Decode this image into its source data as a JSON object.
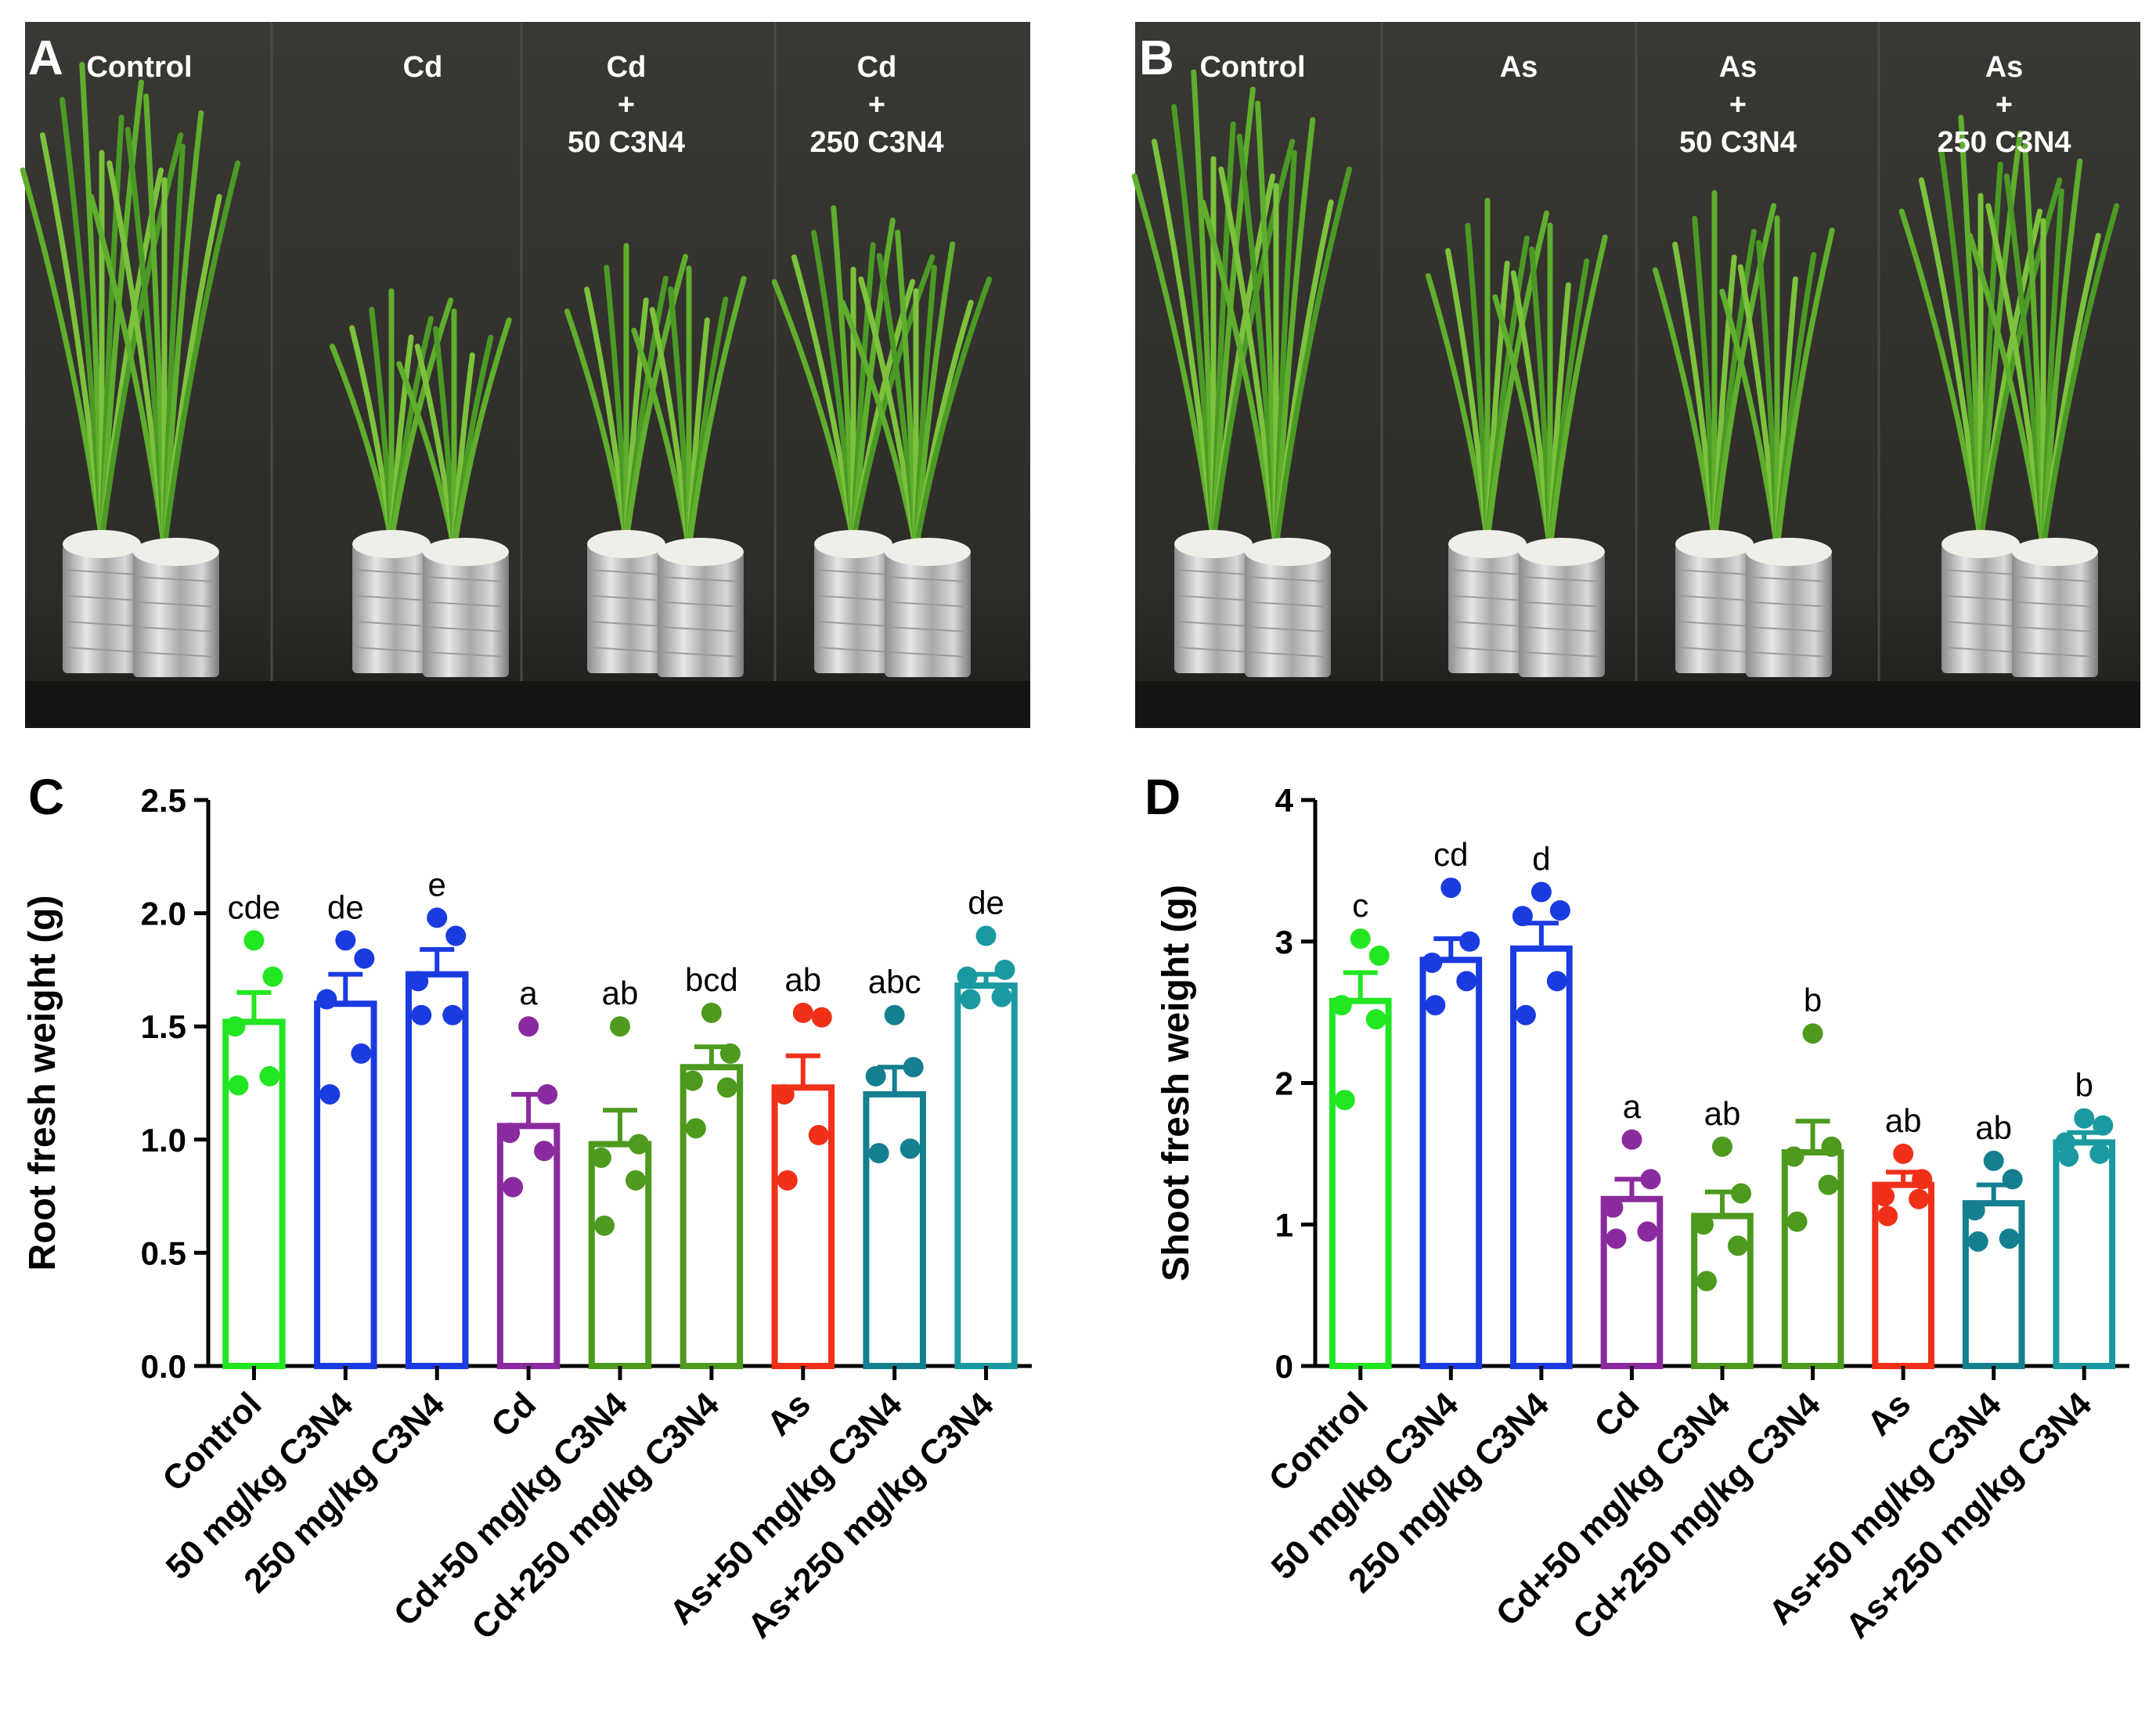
{
  "photos": {
    "A": {
      "letter": "A",
      "labels": [
        [
          "Control"
        ],
        [
          "Cd"
        ],
        [
          "Cd",
          "+",
          "50 C3N4"
        ],
        [
          "Cd",
          "+",
          "250 C3N4"
        ]
      ]
    },
    "B": {
      "letter": "B",
      "labels": [
        [
          "Control"
        ],
        [
          "As"
        ],
        [
          "As",
          "+",
          "50 C3N4"
        ],
        [
          "As",
          "+",
          "250 C3N4"
        ]
      ]
    }
  },
  "colors": [
    "#22e622",
    "#1a3be0",
    "#1a3be0",
    "#8b2a9e",
    "#4d9a1e",
    "#4d9a1e",
    "#f03018",
    "#147f8e",
    "#1a9aa0"
  ],
  "chart_data": [
    {
      "panel": "C",
      "type": "bar",
      "ylabel": "Root fresh weight (g)",
      "ylim": [
        0,
        2.5
      ],
      "yticks": [
        "0.0",
        "0.5",
        "1.0",
        "1.5",
        "2.0",
        "2.5"
      ],
      "categories": [
        "Control",
        "50 mg/kg C3N4",
        "250 mg/kg C3N4",
        "Cd",
        "Cd+50 mg/kg C3N4",
        "Cd+250 mg/kg C3N4",
        "As",
        "As+50 mg/kg C3N4",
        "As+250 mg/kg C3N4"
      ],
      "means": [
        1.52,
        1.6,
        1.73,
        1.06,
        0.98,
        1.32,
        1.23,
        1.2,
        1.68
      ],
      "sem": [
        0.13,
        0.13,
        0.11,
        0.14,
        0.15,
        0.09,
        0.14,
        0.12,
        0.05
      ],
      "points": [
        [
          1.88,
          1.72,
          1.5,
          1.28,
          1.24
        ],
        [
          1.88,
          1.8,
          1.62,
          1.38,
          1.2
        ],
        [
          1.98,
          1.9,
          1.7,
          1.55,
          1.55
        ],
        [
          1.5,
          1.2,
          1.03,
          0.95,
          0.79
        ],
        [
          1.5,
          0.98,
          0.92,
          0.82,
          0.62
        ],
        [
          1.56,
          1.38,
          1.26,
          1.23,
          1.05
        ],
        [
          1.56,
          1.54,
          1.2,
          1.02,
          0.82
        ],
        [
          1.55,
          1.32,
          1.28,
          0.96,
          0.94
        ],
        [
          1.9,
          1.75,
          1.72,
          1.63,
          1.62
        ]
      ],
      "sig": [
        "cde",
        "de",
        "e",
        "a",
        "ab",
        "bcd",
        "ab",
        "abc",
        "de"
      ]
    },
    {
      "panel": "D",
      "type": "bar",
      "ylabel": "Shoot fresh weight (g)",
      "ylim": [
        0,
        4
      ],
      "yticks": [
        "0",
        "1",
        "2",
        "3",
        "4"
      ],
      "categories": [
        "Control",
        "50 mg/kg C3N4",
        "250 mg/kg C3N4",
        "Cd",
        "Cd+50 mg/kg C3N4",
        "Cd+250 mg/kg C3N4",
        "As",
        "As+50 mg/kg C3N4",
        "As+250 mg/kg C3N4"
      ],
      "means": [
        2.58,
        2.87,
        2.95,
        1.18,
        1.06,
        1.51,
        1.28,
        1.15,
        1.58
      ],
      "sem": [
        0.2,
        0.15,
        0.18,
        0.14,
        0.17,
        0.22,
        0.09,
        0.13,
        0.07
      ],
      "points": [
        [
          3.02,
          2.9,
          2.55,
          2.45,
          1.88
        ],
        [
          3.38,
          3.0,
          2.85,
          2.72,
          2.55
        ],
        [
          3.35,
          3.22,
          3.18,
          2.72,
          2.48
        ],
        [
          1.6,
          1.32,
          1.12,
          0.95,
          0.9
        ],
        [
          1.55,
          1.22,
          1.0,
          0.85,
          0.6
        ],
        [
          2.35,
          1.55,
          1.48,
          1.28,
          1.02
        ],
        [
          1.5,
          1.32,
          1.2,
          1.18,
          1.06
        ],
        [
          1.45,
          1.32,
          1.1,
          0.9,
          0.88
        ],
        [
          1.75,
          1.7,
          1.58,
          1.5,
          1.48
        ]
      ],
      "sig": [
        "c",
        "cd",
        "d",
        "a",
        "ab",
        "b",
        "ab",
        "ab",
        "b"
      ]
    }
  ]
}
